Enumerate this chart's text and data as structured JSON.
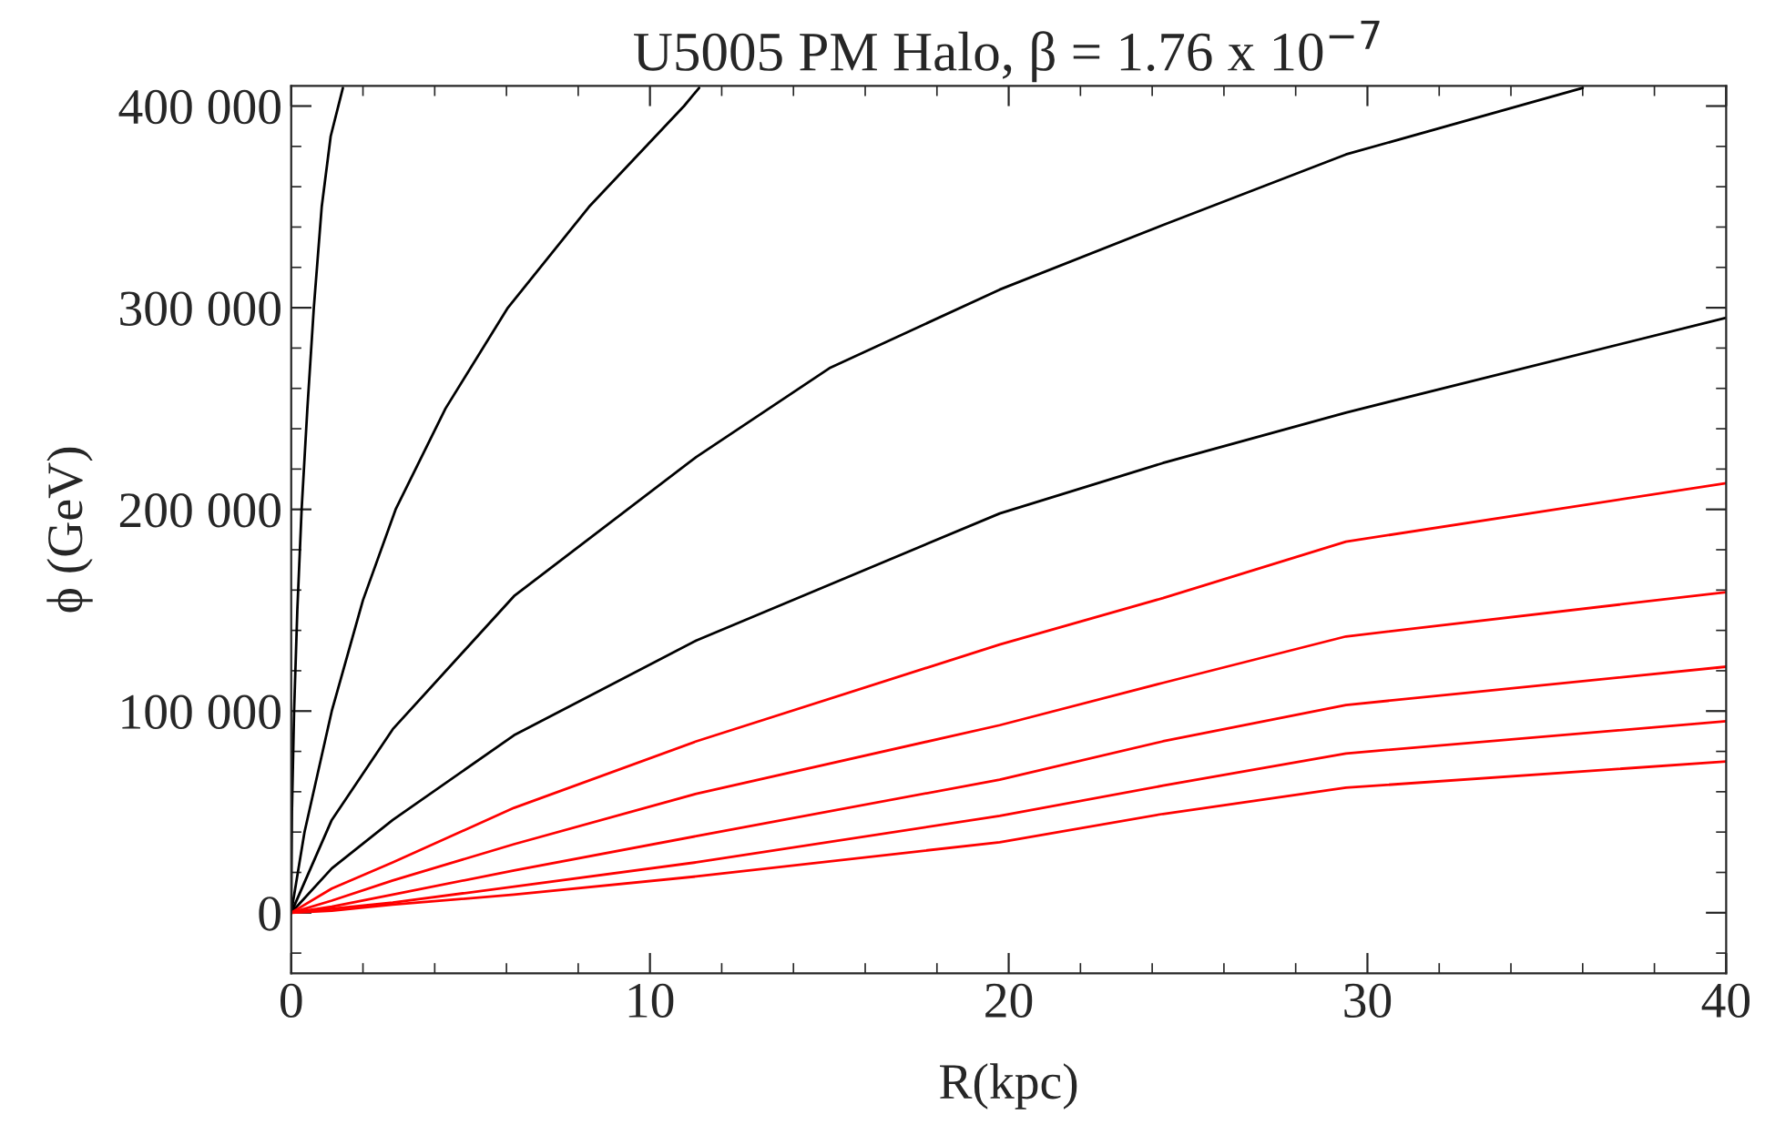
{
  "chart_data": {
    "type": "line",
    "title": "U5005 PM Halo, β = 1.76 x 10$^{−7}$",
    "xlabel": "R(kpc)",
    "ylabel": "ϕ (GeV)",
    "xlim": [
      0,
      40
    ],
    "ylim": [
      -30000,
      410000
    ],
    "xticks": [
      0,
      10,
      20,
      30,
      40
    ],
    "yticks": [
      {
        "value": 0,
        "label": "0"
      },
      {
        "value": 100000,
        "label": "100 000"
      },
      {
        "value": 200000,
        "label": "200 000"
      },
      {
        "value": 300000,
        "label": "300 000"
      },
      {
        "value": 400000,
        "label": "400 000"
      }
    ],
    "grid": false,
    "line_style": "solid",
    "marker": "none",
    "series": [
      {
        "color": "#000000",
        "x": [
          0,
          0.02,
          0.08,
          0.17,
          0.29,
          0.45,
          0.63,
          0.85,
          1.1,
          1.44
        ],
        "values": [
          0,
          50000,
          100000,
          150000,
          200000,
          250000,
          300000,
          350000,
          385000,
          409000
        ]
      },
      {
        "color": "#000000",
        "x": [
          0,
          0.37,
          1.13,
          2.0,
          2.91,
          4.3,
          6.04,
          8.3,
          10.95,
          11.37
        ],
        "values": [
          0,
          40000,
          100000,
          155000,
          200000,
          250000,
          300000,
          350000,
          400000,
          409000
        ]
      },
      {
        "color": "#000000",
        "x": [
          0,
          1.13,
          2.83,
          6.21,
          11.29,
          15,
          19.75,
          24.3,
          29.4,
          36.0
        ],
        "values": [
          0,
          46000,
          91000,
          157000,
          226000,
          270000,
          309000,
          341000,
          376000,
          409000
        ]
      },
      {
        "color": "#000000",
        "x": [
          0,
          1.13,
          2.83,
          6.21,
          11.29,
          19.75,
          24.3,
          29.4,
          40
        ],
        "values": [
          0,
          22000,
          46000,
          88000,
          135000,
          198000,
          223000,
          248000,
          295000
        ]
      },
      {
        "color": "#ff0000",
        "x": [
          0,
          1.13,
          2.83,
          6.21,
          11.29,
          19.75,
          24.3,
          29.4,
          40
        ],
        "values": [
          0,
          12000,
          25000,
          52000,
          85000,
          133000,
          156000,
          184000,
          213000
        ]
      },
      {
        "color": "#ff0000",
        "x": [
          0,
          1.13,
          2.83,
          6.21,
          11.29,
          19.75,
          24.3,
          29.4,
          40
        ],
        "values": [
          0,
          6000,
          16000,
          34000,
          59000,
          93000,
          114000,
          137000,
          159000
        ]
      },
      {
        "color": "#ff0000",
        "x": [
          0,
          1.13,
          2.83,
          6.21,
          11.29,
          19.75,
          24.3,
          29.4,
          40
        ],
        "values": [
          0,
          3000,
          9000,
          21000,
          38000,
          66000,
          85000,
          103000,
          122000
        ]
      },
      {
        "color": "#ff0000",
        "x": [
          0,
          1.13,
          2.83,
          6.21,
          11.29,
          19.75,
          24.3,
          29.4,
          40
        ],
        "values": [
          0,
          2000,
          5000,
          13000,
          25000,
          48000,
          63000,
          79000,
          95000
        ]
      },
      {
        "color": "#ff0000",
        "x": [
          0,
          1.13,
          2.83,
          6.21,
          11.29,
          19.75,
          24.3,
          29.4,
          40
        ],
        "values": [
          0,
          1000,
          4000,
          9000,
          18000,
          35000,
          49000,
          62000,
          75000
        ]
      }
    ]
  }
}
